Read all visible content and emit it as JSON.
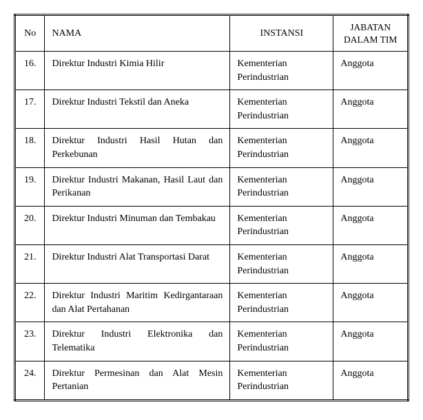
{
  "table": {
    "headers": {
      "no": "No",
      "nama": "NAMA",
      "instansi": "INSTANSI",
      "jabatan": "JABATAN DALAM TIM"
    },
    "rows": [
      {
        "no": "16.",
        "nama": "Direktur Industri Kimia Hilir",
        "instansi": "Kementerian Perindustrian",
        "jabatan": "Anggota"
      },
      {
        "no": "17.",
        "nama": "Direktur Industri Tekstil dan Aneka",
        "instansi": "Kementerian Perindustrian",
        "jabatan": "Anggota"
      },
      {
        "no": "18.",
        "nama": "Direktur Industri Hasil Hutan dan Perkebunan",
        "instansi": "Kementerian Perindustrian",
        "jabatan": "Anggota"
      },
      {
        "no": "19.",
        "nama": "Direktur Industri Makanan, Hasil Laut dan Perikanan",
        "instansi": "Kementerian Perindustrian",
        "jabatan": "Anggota"
      },
      {
        "no": "20.",
        "nama": "Direktur Industri Minuman dan Tembakau",
        "instansi": "Kementerian Perindustrian",
        "jabatan": "Anggota"
      },
      {
        "no": "21.",
        "nama": "Direktur Industri Alat Transportasi Darat",
        "instansi": "Kementerian Perindustrian",
        "jabatan": "Anggota"
      },
      {
        "no": "22.",
        "nama": "Direktur Industri Maritim Kedirgantaraan dan Alat Pertahanan",
        "instansi": "Kementerian Perindustrian",
        "jabatan": "Anggota"
      },
      {
        "no": "23.",
        "nama": "Direktur Industri Elektronika dan Telematika",
        "instansi": "Kementerian Perindustrian",
        "jabatan": "Anggota"
      },
      {
        "no": "24.",
        "nama": "Direktur Permesinan dan Alat Mesin Pertanian",
        "instansi": "Kementerian Perindustrian",
        "jabatan": "Anggota"
      }
    ]
  }
}
